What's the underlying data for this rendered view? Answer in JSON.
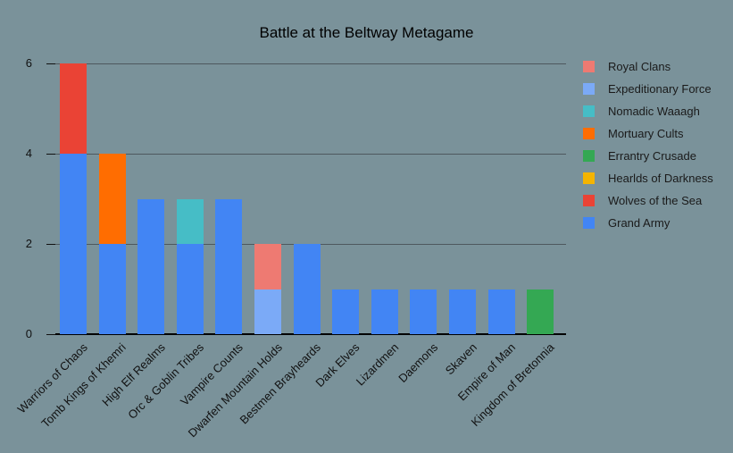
{
  "chart_data": {
    "type": "bar",
    "stacked": true,
    "title": "Battle at the Beltway Metagame",
    "xlabel": "",
    "ylabel": "",
    "ylim": [
      0,
      6
    ],
    "yticks": [
      0,
      2,
      4,
      6
    ],
    "grid": true,
    "legend_position": "right",
    "background_color": "#7A929A",
    "gridline_color": "#4E585E",
    "baseline_color": "#000000",
    "text_color": "#111111",
    "categories": [
      "Warriors of Chaos",
      "Tomb Kings of Khemri",
      "High Elf Realms",
      "Orc & Goblin Tribes",
      "Vampire Counts",
      "Dwarfen Mountain Holds",
      "Bestmen Brayheards",
      "Dark Elves",
      "Lizardmen",
      "Daemons",
      "Skaven",
      "Empire of Man",
      "Kingdom of Bretonnia"
    ],
    "series": [
      {
        "name": "Grand Army",
        "color": "#4285F4",
        "values": [
          4,
          2,
          3,
          2,
          3,
          0,
          2,
          1,
          1,
          1,
          1,
          1,
          0
        ]
      },
      {
        "name": "Wolves of the Sea",
        "color": "#EA4335",
        "values": [
          2,
          0,
          0,
          0,
          0,
          0,
          0,
          0,
          0,
          0,
          0,
          0,
          0
        ]
      },
      {
        "name": "Hearlds of Darkness",
        "color": "#F4B400",
        "values": [
          0,
          0,
          0,
          0,
          0,
          0,
          0,
          0,
          0,
          0,
          0,
          0,
          0
        ]
      },
      {
        "name": "Errantry Crusade",
        "color": "#34A853",
        "values": [
          0,
          0,
          0,
          0,
          0,
          0,
          0,
          0,
          0,
          0,
          0,
          0,
          1
        ]
      },
      {
        "name": "Mortuary Cults",
        "color": "#FF6D01",
        "values": [
          0,
          2,
          0,
          0,
          0,
          0,
          0,
          0,
          0,
          0,
          0,
          0,
          0
        ]
      },
      {
        "name": "Nomadic Waaagh",
        "color": "#46BDC6",
        "values": [
          0,
          0,
          0,
          1,
          0,
          0,
          0,
          0,
          0,
          0,
          0,
          0,
          0
        ]
      },
      {
        "name": "Expeditionary Force",
        "color": "#7BAAF7",
        "values": [
          0,
          0,
          0,
          0,
          0,
          1,
          0,
          0,
          0,
          0,
          0,
          0,
          0
        ]
      },
      {
        "name": "Royal Clans",
        "color": "#EE7A72",
        "values": [
          0,
          0,
          0,
          0,
          0,
          1,
          0,
          0,
          0,
          0,
          0,
          0,
          0
        ]
      }
    ],
    "legend": [
      {
        "label": "Royal Clans",
        "color": "#EE7A72"
      },
      {
        "label": "Expeditionary Force",
        "color": "#7BAAF7"
      },
      {
        "label": "Nomadic Waaagh",
        "color": "#46BDC6"
      },
      {
        "label": "Mortuary Cults",
        "color": "#FF6D01"
      },
      {
        "label": "Errantry Crusade",
        "color": "#34A853"
      },
      {
        "label": "Hearlds of Darkness",
        "color": "#F4B400"
      },
      {
        "label": "Wolves of the Sea",
        "color": "#EA4335"
      },
      {
        "label": "Grand Army",
        "color": "#4285F4"
      }
    ]
  }
}
